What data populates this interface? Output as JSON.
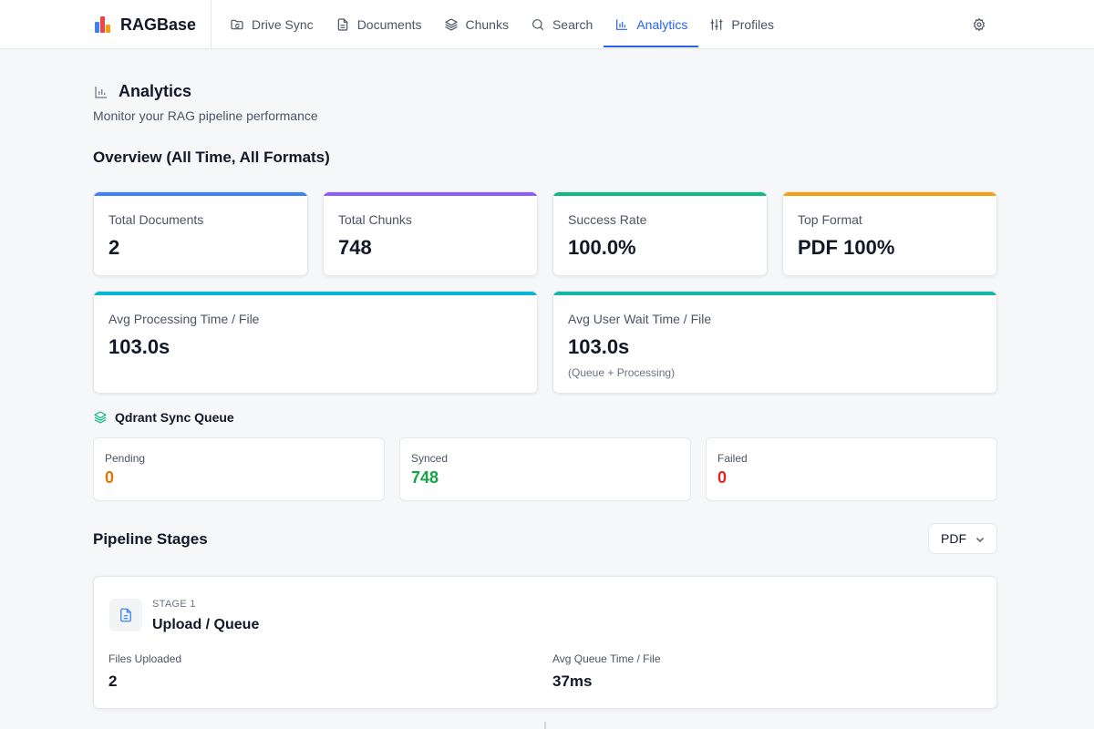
{
  "app": {
    "name": "RAGBase"
  },
  "nav": [
    {
      "label": "Drive Sync",
      "icon": "folder-sync-icon",
      "active": false
    },
    {
      "label": "Documents",
      "icon": "document-icon",
      "active": false
    },
    {
      "label": "Chunks",
      "icon": "layers-icon",
      "active": false
    },
    {
      "label": "Search",
      "icon": "search-icon",
      "active": false
    },
    {
      "label": "Analytics",
      "icon": "bar-chart-icon",
      "active": true
    },
    {
      "label": "Profiles",
      "icon": "sliders-icon",
      "active": false
    }
  ],
  "page": {
    "title": "Analytics",
    "subtitle": "Monitor your RAG pipeline performance"
  },
  "overview": {
    "title": "Overview (All Time, All Formats)",
    "cards": [
      {
        "label": "Total Documents",
        "value": "2",
        "accent": "#3b82f6"
      },
      {
        "label": "Total Chunks",
        "value": "748",
        "accent": "#8b5cf6"
      },
      {
        "label": "Success Rate",
        "value": "100.0%",
        "accent": "#10b981"
      },
      {
        "label": "Top Format",
        "value": "PDF 100%",
        "accent": "#f59e0b"
      },
      {
        "label": "Avg Processing Time / File",
        "value": "103.0s",
        "accent": "#06b6d4"
      },
      {
        "label": "Avg User Wait Time / File",
        "value": "103.0s",
        "note": "(Queue + Processing)",
        "accent": "#14b8a6"
      }
    ]
  },
  "sync_queue": {
    "title": "Qdrant Sync Queue",
    "items": [
      {
        "label": "Pending",
        "value": "0",
        "color": "#d97706"
      },
      {
        "label": "Synced",
        "value": "748",
        "color": "#16a34a"
      },
      {
        "label": "Failed",
        "value": "0",
        "color": "#dc2626"
      }
    ]
  },
  "pipeline": {
    "title": "Pipeline Stages",
    "format_select": "PDF",
    "stages": [
      {
        "number": "STAGE 1",
        "name": "Upload / Queue",
        "metrics": [
          {
            "label": "Files Uploaded",
            "value": "2"
          },
          {
            "label": "Avg Queue Time / File",
            "value": "37ms"
          }
        ]
      }
    ]
  }
}
